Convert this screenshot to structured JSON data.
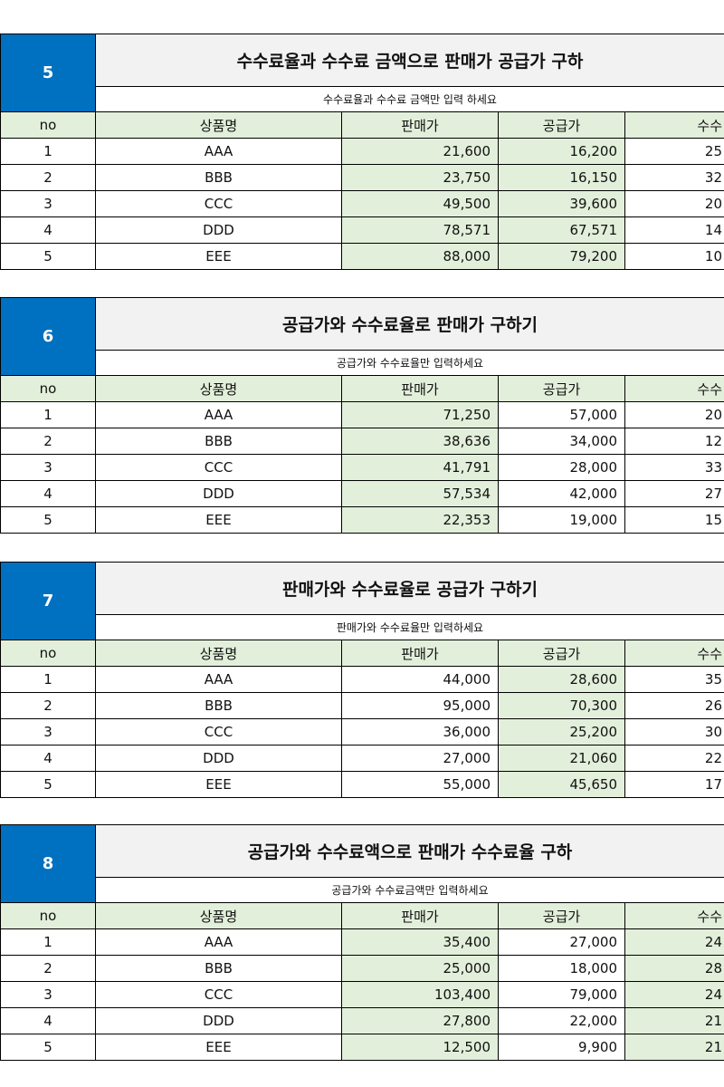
{
  "blocks": [
    {
      "number": "5",
      "title": "수수료율과 수수료 금액으로 판매가 공급가 구하",
      "subtitle": "수수료율과 수수료 금액만 입력 하세요",
      "headers": [
        "no",
        "상품명",
        "판매가",
        "공급가",
        "수수"
      ],
      "rows": [
        [
          "1",
          "AAA",
          "21,600",
          "16,200",
          "25"
        ],
        [
          "2",
          "BBB",
          "23,750",
          "16,150",
          "32"
        ],
        [
          "3",
          "CCC",
          "49,500",
          "39,600",
          "20"
        ],
        [
          "4",
          "DDD",
          "78,571",
          "67,571",
          "14"
        ],
        [
          "5",
          "EEE",
          "88,000",
          "79,200",
          "10"
        ]
      ]
    },
    {
      "number": "6",
      "title": "공급가와 수수료율로 판매가 구하기",
      "subtitle": "공급가와 수수료율만 입력하세요",
      "headers": [
        "no",
        "상품명",
        "판매가",
        "공급가",
        "수수"
      ],
      "rows": [
        [
          "1",
          "AAA",
          "71,250",
          "57,000",
          "20"
        ],
        [
          "2",
          "BBB",
          "38,636",
          "34,000",
          "12"
        ],
        [
          "3",
          "CCC",
          "41,791",
          "28,000",
          "33"
        ],
        [
          "4",
          "DDD",
          "57,534",
          "42,000",
          "27"
        ],
        [
          "5",
          "EEE",
          "22,353",
          "19,000",
          "15"
        ]
      ]
    },
    {
      "number": "7",
      "title": "판매가와 수수료율로 공급가 구하기",
      "subtitle": "판매가와 수수료율만 입력하세요",
      "headers": [
        "no",
        "상품명",
        "판매가",
        "공급가",
        "수수"
      ],
      "rows": [
        [
          "1",
          "AAA",
          "44,000",
          "28,600",
          "35"
        ],
        [
          "2",
          "BBB",
          "95,000",
          "70,300",
          "26"
        ],
        [
          "3",
          "CCC",
          "36,000",
          "25,200",
          "30"
        ],
        [
          "4",
          "DDD",
          "27,000",
          "21,060",
          "22"
        ],
        [
          "5",
          "EEE",
          "55,000",
          "45,650",
          "17"
        ]
      ]
    },
    {
      "number": "8",
      "title": "공급가와 수수료액으로 판매가 수수료율 구하",
      "subtitle": "공급가와 수수료금액만 입력하세요",
      "headers": [
        "no",
        "상품명",
        "판매가",
        "공급가",
        "수수"
      ],
      "rows": [
        [
          "1",
          "AAA",
          "35,400",
          "27,000",
          "24"
        ],
        [
          "2",
          "BBB",
          "25,000",
          "18,000",
          "28"
        ],
        [
          "3",
          "CCC",
          "103,400",
          "79,000",
          "24"
        ],
        [
          "4",
          "DDD",
          "27,800",
          "22,000",
          "21"
        ],
        [
          "5",
          "EEE",
          "12,500",
          "9,900",
          "21"
        ]
      ]
    }
  ]
}
